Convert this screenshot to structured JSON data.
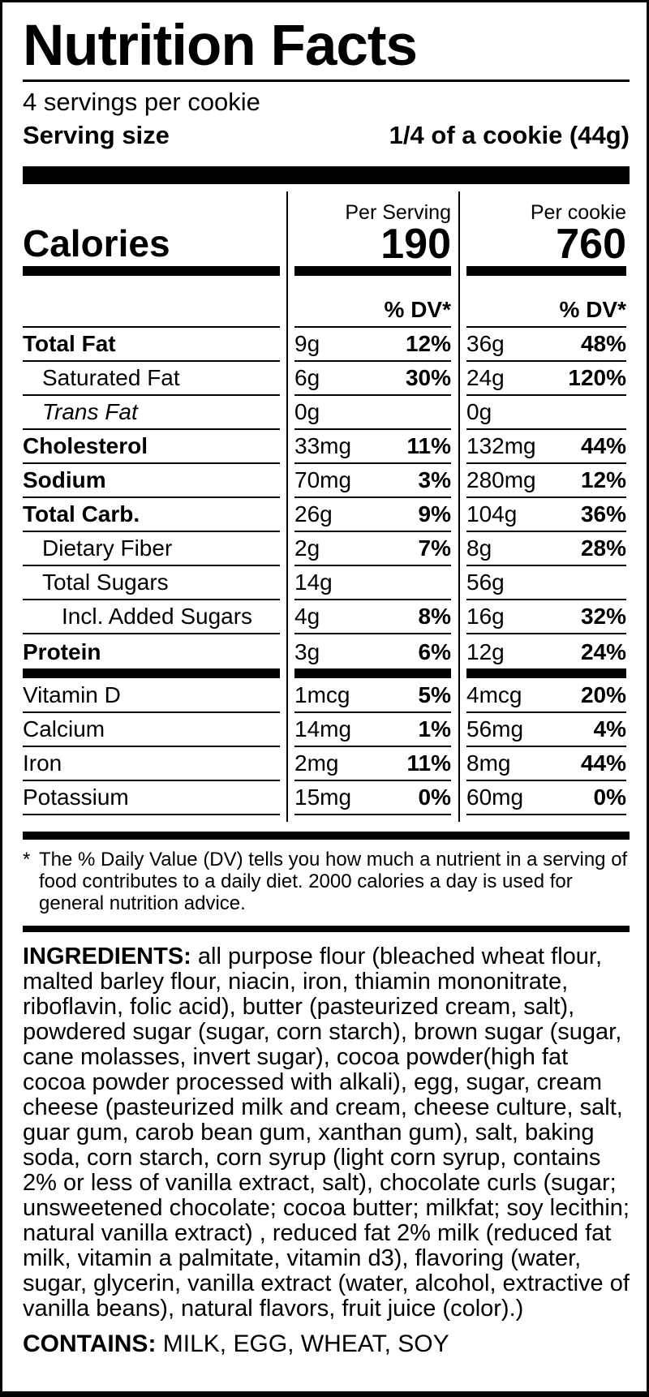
{
  "colors": {
    "ink": "#000000",
    "background": "#ffffff"
  },
  "header": {
    "title": "Nutrition Facts",
    "servings_per_container": "4 servings per cookie",
    "serving_size_label": "Serving size",
    "serving_size_value": "1/4 of a cookie (44g)"
  },
  "calories": {
    "label": "Calories",
    "serving_col_header": "Per Serving",
    "cookie_col_header": "Per cookie",
    "per_serving": "190",
    "per_cookie": "760",
    "dv_header_serving": "% DV*",
    "dv_header_cookie": "% DV*"
  },
  "nutrients": [
    {
      "label": "Total Fat",
      "serving_amount": "9g",
      "serving_dv": "12%",
      "cookie_amount": "36g",
      "cookie_dv": "48%"
    },
    {
      "label": "Saturated Fat",
      "serving_amount": "6g",
      "serving_dv": "30%",
      "cookie_amount": "24g",
      "cookie_dv": "120%"
    },
    {
      "label": "Trans Fat",
      "serving_amount": "0g",
      "serving_dv": "",
      "cookie_amount": "0g",
      "cookie_dv": ""
    },
    {
      "label": "Cholesterol",
      "serving_amount": "33mg",
      "serving_dv": "11%",
      "cookie_amount": "132mg",
      "cookie_dv": "44%"
    },
    {
      "label": "Sodium",
      "serving_amount": "70mg",
      "serving_dv": "3%",
      "cookie_amount": "280mg",
      "cookie_dv": "12%"
    },
    {
      "label": "Total Carb.",
      "serving_amount": "26g",
      "serving_dv": "9%",
      "cookie_amount": "104g",
      "cookie_dv": "36%"
    },
    {
      "label": "Dietary Fiber",
      "serving_amount": "2g",
      "serving_dv": "7%",
      "cookie_amount": "8g",
      "cookie_dv": "28%"
    },
    {
      "label": "Total Sugars",
      "serving_amount": "14g",
      "serving_dv": "",
      "cookie_amount": "56g",
      "cookie_dv": ""
    },
    {
      "label": "Incl. Added Sugars",
      "serving_amount": "4g",
      "serving_dv": "8%",
      "cookie_amount": "16g",
      "cookie_dv": "32%"
    },
    {
      "label": "Protein",
      "serving_amount": "3g",
      "serving_dv": "6%",
      "cookie_amount": "12g",
      "cookie_dv": "24%"
    }
  ],
  "vitamins": [
    {
      "label": "Vitamin D",
      "serving_amount": "1mcg",
      "serving_dv": "5%",
      "cookie_amount": "4mcg",
      "cookie_dv": "20%"
    },
    {
      "label": "Calcium",
      "serving_amount": "14mg",
      "serving_dv": "1%",
      "cookie_amount": "56mg",
      "cookie_dv": "4%"
    },
    {
      "label": "Iron",
      "serving_amount": "2mg",
      "serving_dv": "11%",
      "cookie_amount": "8mg",
      "cookie_dv": "44%"
    },
    {
      "label": "Potassium",
      "serving_amount": "15mg",
      "serving_dv": "0%",
      "cookie_amount": "60mg",
      "cookie_dv": "0%"
    }
  ],
  "footnote": {
    "marker": "*",
    "text": "The % Daily Value (DV) tells you how much a nutrient in a serving of food contributes to a daily diet. 2000 calories a day is used for general nutrition advice."
  },
  "ingredients": {
    "label": "INGREDIENTS:",
    "text": "all purpose flour (bleached wheat flour, malted barley flour, niacin, iron, thiamin mononitrate, riboflavin, folic acid), butter (pasteurized cream, salt), powdered sugar (sugar, corn starch), brown sugar (sugar, cane molasses, invert sugar), cocoa powder(high fat cocoa powder processed with alkali), egg, sugar, cream cheese (pasteurized milk and cream, cheese culture, salt, guar gum, carob bean gum, xanthan gum), salt, baking soda, corn starch, corn syrup (light corn syrup, contains 2% or less of vanilla extract, salt), chocolate curls (sugar; unsweetened chocolate; cocoa butter; milkfat; soy lecithin; natural vanilla extract) , reduced fat 2% milk (reduced fat milk, vitamin a palmitate, vitamin d3), flavoring (water, sugar, glycerin, vanilla extract (water, alcohol, extractive of vanilla beans), natural flavors, fruit juice (color).)"
  },
  "contains": {
    "label": "CONTAINS:",
    "text": "MILK, EGG, WHEAT, SOY"
  }
}
